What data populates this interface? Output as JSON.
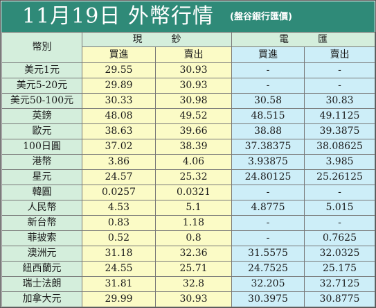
{
  "title": "11月19日 外幣行情",
  "subtitle": "(盤谷銀行匯價)",
  "headers": {
    "category": "幣別",
    "cash_group": "現　　　鈔",
    "wire_group": "電　　　匯",
    "cash_buy": "買進",
    "cash_sell": "賣出",
    "wire_buy": "買進",
    "wire_sell": "賣出"
  },
  "rows": [
    {
      "currency": "美元1元",
      "cash_buy": "29.55",
      "cash_sell": "30.93",
      "wire_buy": "-",
      "wire_sell": "-"
    },
    {
      "currency": "美元5-20元",
      "cash_buy": "29.89",
      "cash_sell": "30.93",
      "wire_buy": "-",
      "wire_sell": "-"
    },
    {
      "currency": "美元50-100元",
      "cash_buy": "30.33",
      "cash_sell": "30.98",
      "wire_buy": "30.58",
      "wire_sell": "30.83"
    },
    {
      "currency": "英鎊",
      "cash_buy": "48.08",
      "cash_sell": "49.52",
      "wire_buy": "48.515",
      "wire_sell": "49.1125"
    },
    {
      "currency": "歐元",
      "cash_buy": "38.63",
      "cash_sell": "39.66",
      "wire_buy": "38.88",
      "wire_sell": "39.3875"
    },
    {
      "currency": "100日圓",
      "cash_buy": "37.02",
      "cash_sell": "38.39",
      "wire_buy": "37.38375",
      "wire_sell": "38.08625"
    },
    {
      "currency": "港幣",
      "cash_buy": "3.86",
      "cash_sell": "4.06",
      "wire_buy": "3.93875",
      "wire_sell": "3.985"
    },
    {
      "currency": "星元",
      "cash_buy": "24.57",
      "cash_sell": "25.32",
      "wire_buy": "24.80125",
      "wire_sell": "25.26125"
    },
    {
      "currency": "韓圓",
      "cash_buy": "0.0257",
      "cash_sell": "0.0321",
      "wire_buy": "-",
      "wire_sell": "-"
    },
    {
      "currency": "人民幣",
      "cash_buy": "4.53",
      "cash_sell": "5.1",
      "wire_buy": "4.8775",
      "wire_sell": "5.015"
    },
    {
      "currency": "新台幣",
      "cash_buy": "0.83",
      "cash_sell": "1.18",
      "wire_buy": "-",
      "wire_sell": "-"
    },
    {
      "currency": "菲披索",
      "cash_buy": "0.52",
      "cash_sell": "0.8",
      "wire_buy": "-",
      "wire_sell": "0.7625"
    },
    {
      "currency": "澳洲元",
      "cash_buy": "31.18",
      "cash_sell": "32.36",
      "wire_buy": "31.5575",
      "wire_sell": "32.0325"
    },
    {
      "currency": "紐西蘭元",
      "cash_buy": "24.55",
      "cash_sell": "25.71",
      "wire_buy": "24.7525",
      "wire_sell": "25.175"
    },
    {
      "currency": "瑞士法朗",
      "cash_buy": "31.81",
      "cash_sell": "32.8",
      "wire_buy": "32.205",
      "wire_sell": "32.7125"
    },
    {
      "currency": "加拿大元",
      "cash_buy": "29.99",
      "cash_sell": "30.93",
      "wire_buy": "30.3975",
      "wire_sell": "30.8775"
    }
  ],
  "colors": {
    "title_bar": "#2f8a78",
    "category_cells": "#d4eedc",
    "cash_cells": "#fbfbc6",
    "wire_cells": "#cdeef8"
  }
}
